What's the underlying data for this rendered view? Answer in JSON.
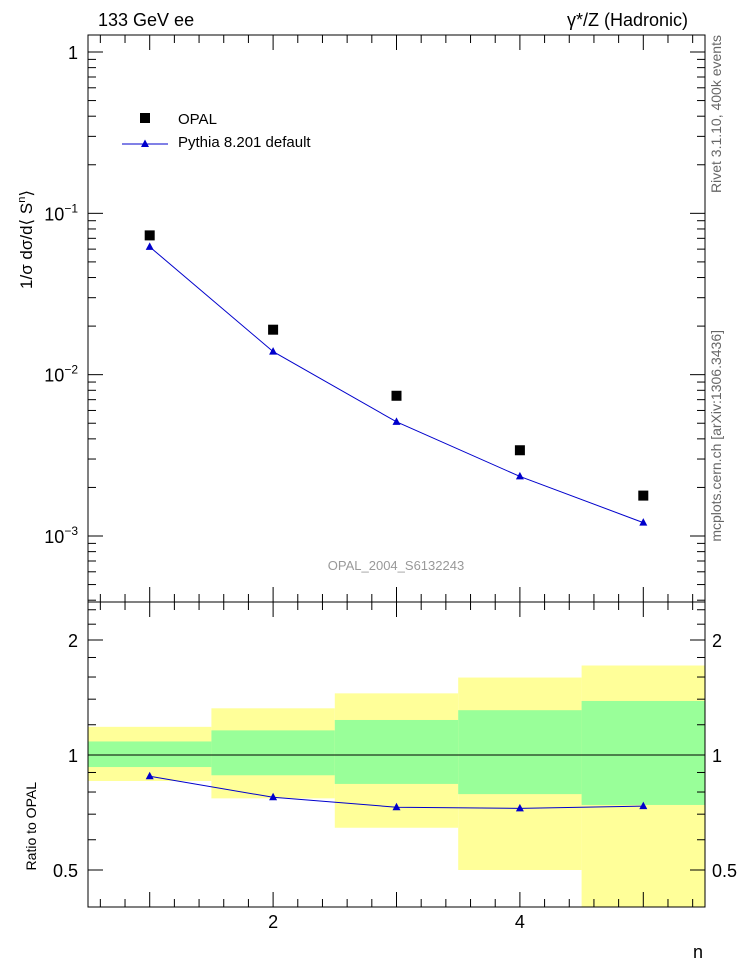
{
  "header": {
    "left": "133 GeV ee",
    "right": "γ*/Z (Hadronic)"
  },
  "side": {
    "top": "Rivet 3.1.10,  400k events",
    "bottom": "mcplots.cern.ch [arXiv:1306.3436]"
  },
  "chart_data": [
    {
      "type": "scatter",
      "ylabel_main": "1/σ dσ/d⟨ S",
      "ylabel_sup": "n",
      "ylabel_end": "⟩",
      "xlabel": "n",
      "watermark": "OPAL_2004_S6132243",
      "yscale": "log",
      "xlim": [
        0.5,
        5.5
      ],
      "ylim": [
        0.0004,
        1.3
      ],
      "yticks": [
        {
          "value": 1,
          "base": "1",
          "exp": ""
        },
        {
          "value": 0.1,
          "base": "10",
          "exp": "−1"
        },
        {
          "value": 0.01,
          "base": "10",
          "exp": "−2"
        },
        {
          "value": 0.001,
          "base": "10",
          "exp": "−3"
        }
      ],
      "series": [
        {
          "name": "OPAL",
          "color": "#000000",
          "marker": "square",
          "x": [
            1,
            2,
            3,
            4,
            5
          ],
          "y": [
            0.073,
            0.019,
            0.0074,
            0.0034,
            0.00178
          ]
        },
        {
          "name": "Pythia 8.201 default",
          "color": "#0000cc",
          "marker": "triangle",
          "x": [
            1,
            2,
            3,
            4,
            5
          ],
          "y": [
            0.062,
            0.0139,
            0.0051,
            0.00234,
            0.00121
          ]
        }
      ]
    },
    {
      "type": "line",
      "ylabel": "Ratio to OPAL",
      "yscale": "log",
      "xlim": [
        0.5,
        5.5
      ],
      "ylim": [
        0.39,
        2.45
      ],
      "yticks": [
        {
          "value": 2,
          "label": "2"
        },
        {
          "value": 1,
          "label": "1"
        },
        {
          "value": 0.5,
          "label": "0.5"
        }
      ],
      "xticks": [
        {
          "value": 2,
          "label": "2"
        },
        {
          "value": 4,
          "label": "4"
        }
      ],
      "bands": {
        "x_edges": [
          0.5,
          1.5,
          2.5,
          3.5,
          4.5,
          5.5
        ],
        "yellow_lo": [
          0.855,
          0.77,
          0.645,
          0.5,
          0.36
        ],
        "yellow_hi": [
          1.185,
          1.325,
          1.45,
          1.595,
          1.715
        ],
        "green_lo": [
          0.93,
          0.885,
          0.84,
          0.79,
          0.74
        ],
        "green_hi": [
          1.085,
          1.16,
          1.235,
          1.31,
          1.385
        ]
      },
      "series": [
        {
          "name": "Pythia 8.201 default",
          "color": "#0000cc",
          "x": [
            1,
            2,
            3,
            4,
            5
          ],
          "y": [
            0.88,
            0.775,
            0.73,
            0.725,
            0.735
          ]
        }
      ]
    }
  ]
}
